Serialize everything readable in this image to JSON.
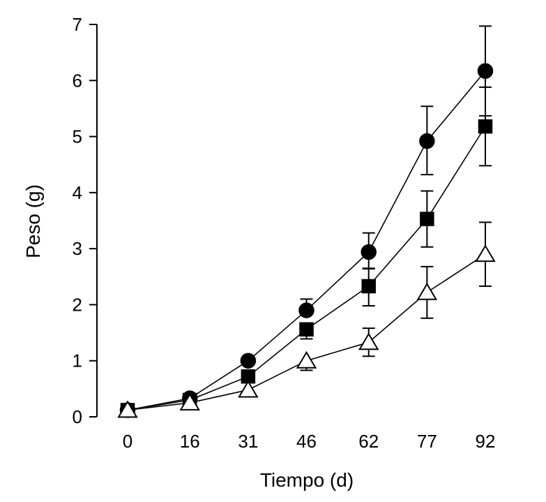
{
  "chart_data": {
    "type": "line",
    "title": "",
    "xlabel": "Tiempo (d)",
    "ylabel": "Peso (g)",
    "x": [
      0,
      16,
      31,
      46,
      62,
      77,
      92
    ],
    "x_tick_labels": [
      "0",
      "16",
      "31",
      "46",
      "62",
      "77",
      "92"
    ],
    "y_ticks": [
      0,
      1,
      2,
      3,
      4,
      5,
      6,
      7
    ],
    "y_tick_labels": [
      "0",
      "1",
      "2",
      "3",
      "4",
      "5",
      "6",
      "7"
    ],
    "ylim": [
      0,
      7
    ],
    "grid": false,
    "legend": null,
    "series": [
      {
        "name": "filled-circle",
        "marker": "circle",
        "fill": "#000000",
        "values": [
          0.12,
          0.33,
          1.0,
          1.9,
          2.94,
          4.92,
          6.17
        ],
        "error_upper": [
          0.0,
          0.0,
          0.0,
          0.2,
          0.34,
          0.62,
          0.8
        ],
        "error_lower": [
          0.0,
          0.0,
          0.0,
          0.0,
          0.3,
          0.6,
          0.8
        ]
      },
      {
        "name": "filled-square",
        "marker": "square",
        "fill": "#000000",
        "values": [
          0.12,
          0.3,
          0.72,
          1.56,
          2.33,
          3.53,
          5.18
        ],
        "error_upper": [
          0.0,
          0.0,
          0.0,
          0.0,
          0.32,
          0.5,
          0.7
        ],
        "error_lower": [
          0.0,
          0.0,
          0.0,
          0.17,
          0.35,
          0.5,
          0.7
        ]
      },
      {
        "name": "open-triangle",
        "marker": "triangle",
        "fill": "#ffffff",
        "values": [
          0.12,
          0.25,
          0.48,
          1.0,
          1.33,
          2.22,
          2.9
        ],
        "error_upper": [
          0.0,
          0.0,
          0.0,
          0.0,
          0.25,
          0.46,
          0.57
        ],
        "error_lower": [
          0.0,
          0.0,
          0.0,
          0.17,
          0.25,
          0.46,
          0.57
        ]
      }
    ]
  }
}
